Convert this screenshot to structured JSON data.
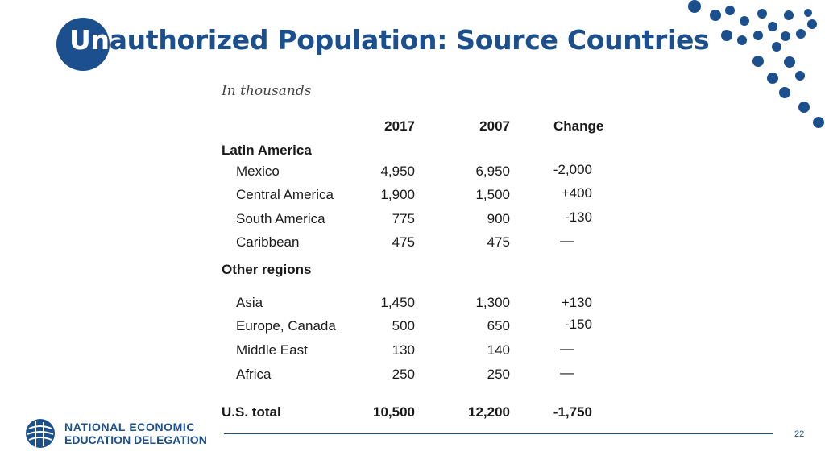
{
  "slide": {
    "title_highlight": "Un",
    "title_rest": "authorized Population: Source Countries",
    "subtitle": "In thousands",
    "page_number": "22"
  },
  "table": {
    "headers": [
      "2017",
      "2007",
      "Change"
    ],
    "groups": [
      {
        "label": "Latin America",
        "rows": [
          {
            "name": "Mexico",
            "v2017": "4,950",
            "v2007": "6,950",
            "change": "-2,000"
          },
          {
            "name": "Central America",
            "v2017": "1,900",
            "v2007": "1,500",
            "change": "+400"
          },
          {
            "name": "South America",
            "v2017": "775",
            "v2007": "900",
            "change": "-130"
          },
          {
            "name": "Caribbean",
            "v2017": "475",
            "v2007": "475",
            "change": "—"
          }
        ]
      },
      {
        "label": "Other regions",
        "rows": [
          {
            "name": "Asia",
            "v2017": "1,450",
            "v2007": "1,300",
            "change": "+130"
          },
          {
            "name": "Europe, Canada",
            "v2017": "500",
            "v2007": "650",
            "change": "-150"
          },
          {
            "name": "Middle East",
            "v2017": "130",
            "v2007": "140",
            "change": "—"
          },
          {
            "name": "Africa",
            "v2017": "250",
            "v2007": "250",
            "change": "—"
          }
        ]
      }
    ],
    "total": {
      "name": "U.S. total",
      "v2017": "10,500",
      "v2007": "12,200",
      "change": "-1,750"
    }
  },
  "logo": {
    "line1": "NATIONAL ECONOMIC",
    "line2": "EDUCATION DELEGATION",
    "icon": "globe-icon"
  },
  "colors": {
    "brand_blue": "#1b4f8e"
  }
}
